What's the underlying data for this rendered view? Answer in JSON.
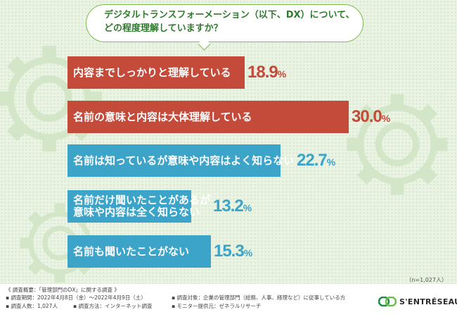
{
  "question": {
    "line1": "デジタルトランスフォーメーション（以下、DX）について、",
    "line2": "どの程度理解していますか？"
  },
  "chart_data": {
    "type": "bar",
    "orientation": "horizontal",
    "categories": [
      "内容までしっかりと理解している",
      "名前の意味と内容は大体理解している",
      "名前は知っているが意味や内容はよく知らない",
      "名前だけ聞いたことがあるが意味や内容は全く知らない",
      "名前も聞いたことがない"
    ],
    "values": [
      18.9,
      30.0,
      22.7,
      13.2,
      15.3
    ],
    "value_labels": [
      "18.9",
      "30.0",
      "22.7",
      "13.2",
      "15.3"
    ],
    "unit": "%",
    "colors": [
      "#c44a3a",
      "#c44a3a",
      "#3ca3c9",
      "#3ca3c9",
      "#3ca3c9"
    ],
    "pct_colors": [
      "#c44a3a",
      "#c44a3a",
      "#3ca3c9",
      "#3ca3c9",
      "#3ca3c9"
    ],
    "labels_lines": [
      [
        "内容までしっかりと理解している"
      ],
      [
        "名前の意味と内容は大体理解している"
      ],
      [
        "名前は知っているが意味や内容はよく知らない"
      ],
      [
        "名前だけ聞いたことがあるが",
        "意味や内容は全く知らない"
      ],
      [
        "名前も聞いたことがない"
      ]
    ],
    "note": "（n=1,027人）"
  },
  "footer": {
    "overview": "《 調査概要：「管理部門のDX」に関する調査 》",
    "period": "▪ 調査期間：2022年4月8日（金）〜2022年4月9日（土）",
    "people": "▪ 調査人数：1,027人",
    "method": "▪ 調査方法：インターネット調査",
    "target": "▪ 調査対象：企業の管理部門（総務、人事、経理など）に従事している方",
    "provider": "▪ モニター提供元：ゼネラルリサーチ"
  },
  "logo": {
    "text": "S'ENTRÉSEAU",
    "colors": [
      "#1e8a4a",
      "#6cc04a"
    ]
  }
}
